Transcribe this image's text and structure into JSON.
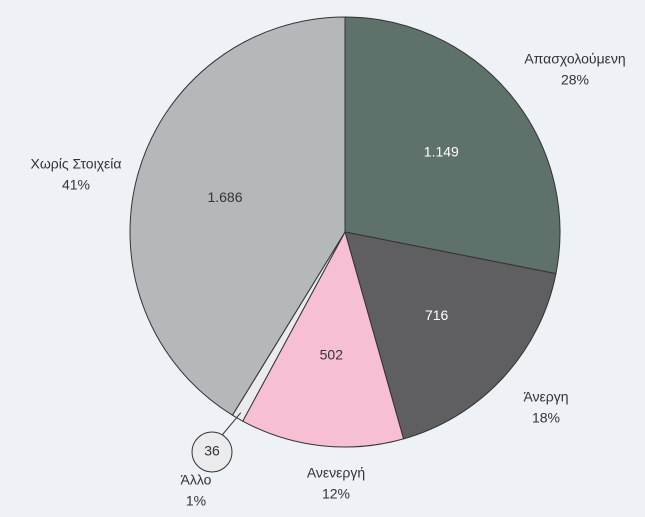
{
  "chart_data": {
    "type": "pie",
    "categories": [
      "Απασχολούμενη",
      "Άνεργη",
      "Ανενεργή",
      "Άλλο",
      "Χωρίς Στοιχεία"
    ],
    "values": [
      1149,
      716,
      502,
      36,
      1686
    ],
    "value_labels": [
      "1.149",
      "716",
      "502",
      "36",
      "1.686"
    ],
    "percent_labels": [
      "28%",
      "18%",
      "12%",
      "1%",
      "41%"
    ],
    "colors": [
      "#5e716b",
      "#5f5f61",
      "#f7bfd3",
      "#ebebed",
      "#b4b8ba"
    ]
  }
}
